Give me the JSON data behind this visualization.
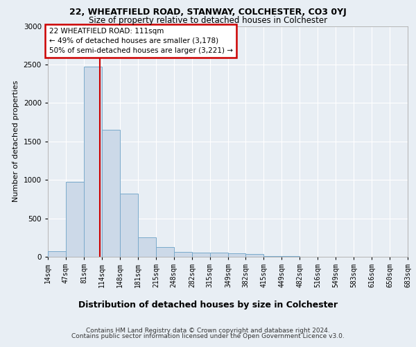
{
  "title1": "22, WHEATFIELD ROAD, STANWAY, COLCHESTER, CO3 0YJ",
  "title2": "Size of property relative to detached houses in Colchester",
  "xlabel": "Distribution of detached houses by size in Colchester",
  "ylabel": "Number of detached properties",
  "footer1": "Contains HM Land Registry data © Crown copyright and database right 2024.",
  "footer2": "Contains public sector information licensed under the Open Government Licence v3.0.",
  "annotation_line1": "22 WHEATFIELD ROAD: 111sqm",
  "annotation_line2": "← 49% of detached houses are smaller (3,178)",
  "annotation_line3": "50% of semi-detached houses are larger (3,221) →",
  "property_size": 111,
  "bar_edges": [
    14,
    47,
    81,
    114,
    148,
    181,
    215,
    248,
    282,
    315,
    349,
    382,
    415,
    449,
    482,
    516,
    549,
    583,
    616,
    650,
    683
  ],
  "bar_heights": [
    75,
    975,
    2475,
    1650,
    825,
    250,
    130,
    60,
    55,
    50,
    45,
    35,
    5,
    5,
    0,
    0,
    0,
    0,
    0,
    0
  ],
  "bar_color": "#ccd9e8",
  "bar_edge_color": "#7aaacb",
  "vline_color": "#cc0000",
  "vline_x": 111,
  "ylim": [
    0,
    3000
  ],
  "yticks": [
    0,
    500,
    1000,
    1500,
    2000,
    2500,
    3000
  ],
  "bg_color": "#e8eef4",
  "plot_bg": "#e8eef4",
  "title_fontsize": 9,
  "subtitle_fontsize": 8.5,
  "ylabel_fontsize": 8,
  "xlabel_fontsize": 9,
  "tick_fontsize": 7,
  "footer_fontsize": 6.5,
  "annot_fontsize": 7.5
}
